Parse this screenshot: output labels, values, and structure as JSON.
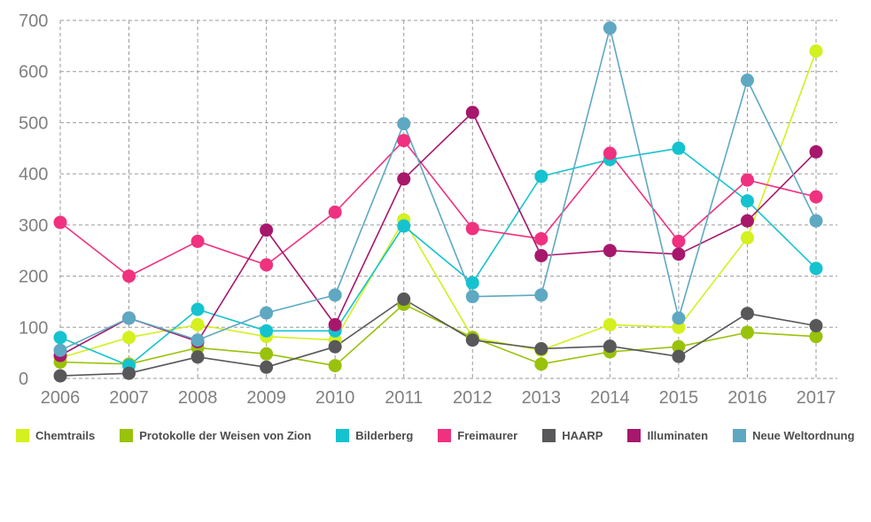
{
  "chart_data": {
    "type": "line",
    "title": "",
    "xlabel": "",
    "ylabel": "",
    "x": [
      "2006",
      "2007",
      "2008",
      "2009",
      "2010",
      "2011",
      "2012",
      "2013",
      "2014",
      "2015",
      "2016",
      "2017"
    ],
    "ylim": [
      0,
      700
    ],
    "yticks": [
      "0",
      "100",
      "200",
      "300",
      "400",
      "500",
      "600",
      "700"
    ],
    "grid": true,
    "legend_position": "bottom",
    "series": [
      {
        "name": "Chemtrails",
        "color": "#d4f01e",
        "values": [
          40,
          80,
          105,
          82,
          75,
          310,
          80,
          55,
          105,
          100,
          275,
          640
        ]
      },
      {
        "name": "Protokolle der Weisen von Zion",
        "color": "#99c20a",
        "values": [
          32,
          28,
          60,
          48,
          25,
          145,
          80,
          28,
          52,
          62,
          90,
          82
        ]
      },
      {
        "name": "Bilderberg",
        "color": "#14c3cf",
        "values": [
          80,
          25,
          135,
          93,
          93,
          298,
          187,
          395,
          428,
          450,
          347,
          215
        ]
      },
      {
        "name": "Freimaurer",
        "color": "#f0317f",
        "values": [
          305,
          200,
          268,
          222,
          325,
          465,
          293,
          273,
          440,
          268,
          388,
          355
        ]
      },
      {
        "name": "HAARP",
        "color": "#58585a",
        "values": [
          5,
          10,
          42,
          22,
          62,
          155,
          75,
          58,
          63,
          43,
          127,
          103
        ]
      },
      {
        "name": "Illuminaten",
        "color": "#a7176c",
        "values": [
          45,
          118,
          72,
          290,
          105,
          390,
          520,
          240,
          250,
          243,
          308,
          443
        ]
      },
      {
        "name": "Neue Weltordnung",
        "color": "#5ea8c2",
        "values": [
          55,
          118,
          75,
          128,
          163,
          498,
          160,
          163,
          685,
          118,
          583,
          308
        ]
      }
    ]
  }
}
